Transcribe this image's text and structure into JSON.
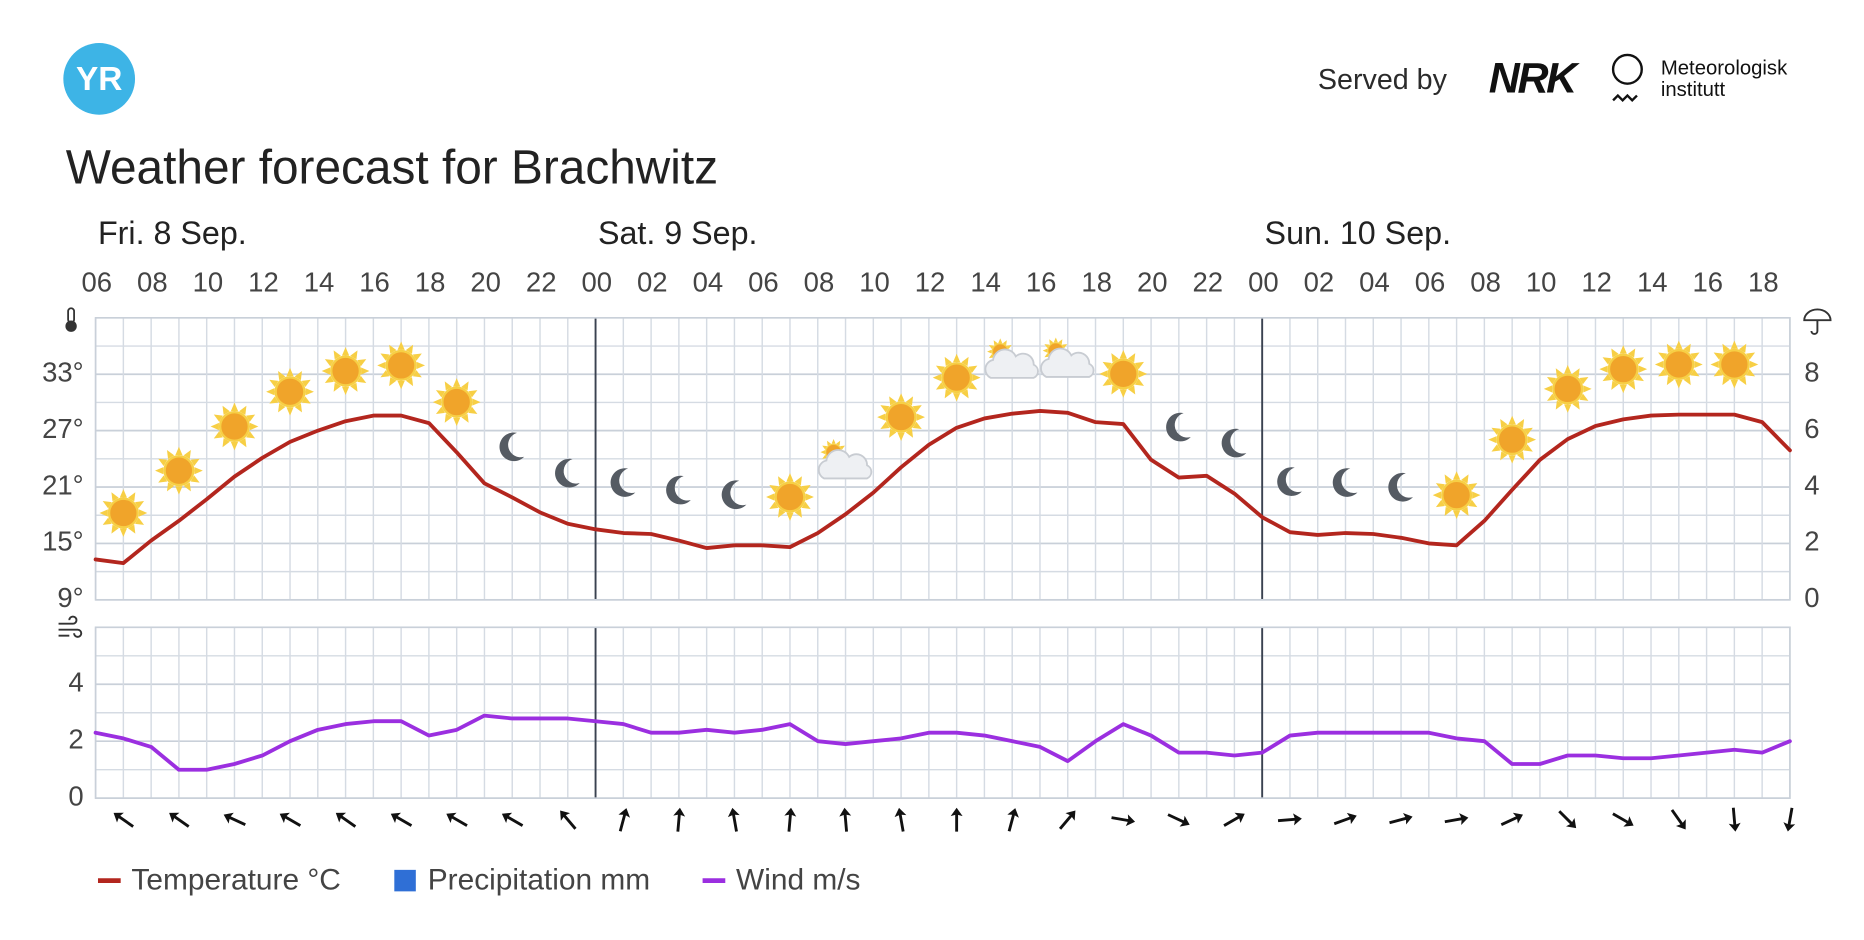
{
  "header": {
    "logo": "YR",
    "served_by": "Served by",
    "nrk": "NRK",
    "met_line1": "Meteorologisk",
    "met_line2": "institutt"
  },
  "chart_data": [
    {
      "type": "line",
      "title": "Weather forecast for Brachwitz",
      "days": [
        "Fri. 8 Sep.",
        "Sat. 9 Sep.",
        "Sun. 10 Sep."
      ],
      "categories": [
        "06",
        null,
        "08",
        null,
        "10",
        null,
        "12",
        null,
        "14",
        null,
        "16",
        null,
        "18",
        null,
        "20",
        null,
        "22",
        null,
        "00",
        null,
        "02",
        null,
        "04",
        null,
        "06",
        null,
        "08",
        null,
        "10",
        null,
        "12",
        null,
        "14",
        null,
        "16",
        null,
        "18",
        null,
        "20",
        null,
        "22",
        null,
        "00",
        null,
        "02",
        null,
        "04",
        null,
        "06",
        null,
        "08",
        null,
        "10",
        null,
        "12",
        null,
        "14",
        null,
        "16",
        null,
        "18",
        null
      ],
      "series": [
        {
          "name": "Temperature °C",
          "color": "#b3261e",
          "values": [
            13.3,
            12.9,
            15.3,
            17.4,
            19.7,
            22.1,
            24.1,
            25.8,
            27.0,
            28.0,
            28.6,
            28.6,
            27.8,
            24.7,
            21.4,
            19.9,
            18.3,
            17.1,
            16.5,
            16.1,
            16.0,
            15.3,
            14.5,
            14.8,
            14.8,
            14.6,
            16.1,
            18.1,
            20.4,
            23.1,
            25.5,
            27.3,
            28.3,
            28.8,
            29.1,
            28.9,
            27.9,
            27.7,
            23.9,
            22.0,
            22.2,
            20.3,
            17.8,
            16.2,
            15.9,
            16.1,
            16.0,
            15.6,
            15.0,
            14.8,
            17.4,
            20.7,
            23.9,
            26.1,
            27.5,
            28.2,
            28.6,
            28.7,
            28.7,
            28.7,
            27.9,
            24.9
          ]
        },
        {
          "name": "Precipitation mm",
          "color": "#2f6fd6",
          "axis": "y2",
          "values": [
            0,
            0,
            0,
            0,
            0,
            0,
            0,
            0,
            0,
            0,
            0,
            0,
            0,
            0,
            0,
            0,
            0,
            0,
            0,
            0,
            0,
            0,
            0,
            0,
            0,
            0,
            0,
            0,
            0,
            0,
            0,
            0,
            0,
            0,
            0,
            0,
            0,
            0,
            0,
            0,
            0,
            0,
            0,
            0,
            0,
            0,
            0,
            0,
            0,
            0,
            0,
            0,
            0,
            0,
            0,
            0,
            0,
            0,
            0,
            0,
            0,
            0
          ]
        }
      ],
      "ylim": [
        9,
        39
      ],
      "yticks": [
        {
          "value": 9,
          "label": "9°"
        },
        {
          "value": 15,
          "label": "15°"
        },
        {
          "value": 21,
          "label": "21°"
        },
        {
          "value": 27,
          "label": "27°"
        },
        {
          "value": 33,
          "label": "33°"
        }
      ],
      "y2lim": [
        0,
        10
      ],
      "y2ticks": [
        0,
        2,
        4,
        6,
        8
      ],
      "grid": true
    },
    {
      "type": "line",
      "series": [
        {
          "name": "Wind m/s",
          "color": "#9b2fe0",
          "values": [
            2.3,
            2.1,
            1.8,
            1.0,
            1.0,
            1.2,
            1.5,
            2.0,
            2.4,
            2.6,
            2.7,
            2.7,
            2.2,
            2.4,
            2.9,
            2.8,
            2.8,
            2.8,
            2.7,
            2.6,
            2.3,
            2.3,
            2.4,
            2.3,
            2.4,
            2.6,
            2.0,
            1.9,
            2.0,
            2.1,
            2.3,
            2.3,
            2.2,
            2.0,
            1.8,
            1.3,
            2.0,
            2.6,
            2.2,
            1.6,
            1.6,
            1.5,
            1.6,
            2.2,
            2.3,
            2.3,
            2.3,
            2.3,
            2.3,
            2.1,
            2.0,
            1.2,
            1.2,
            1.5,
            1.5,
            1.4,
            1.4,
            1.5,
            1.6,
            1.7,
            1.6,
            2.0
          ],
          "wind_direction": [
            null,
            305,
            null,
            305,
            null,
            295,
            null,
            300,
            null,
            305,
            null,
            300,
            null,
            300,
            null,
            300,
            null,
            320,
            null,
            15,
            null,
            5,
            null,
            350,
            null,
            5,
            null,
            355,
            null,
            350,
            null,
            0,
            null,
            15,
            null,
            40,
            null,
            100,
            null,
            115,
            null,
            60,
            null,
            85,
            null,
            70,
            null,
            75,
            null,
            80,
            null,
            65,
            null,
            135,
            null,
            120,
            null,
            145,
            null,
            175,
            null,
            190
          ]
        }
      ],
      "ylim": [
        0,
        6
      ],
      "yticks": [
        0,
        2,
        4
      ],
      "grid": true
    }
  ]
}
